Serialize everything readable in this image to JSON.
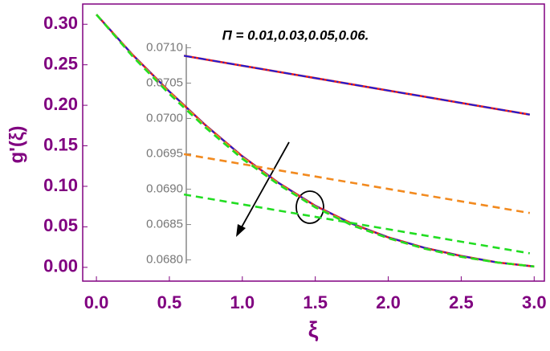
{
  "chart_data": [
    {
      "type": "line",
      "annotation": "Π = 0.01,0.03,0.05,0.06.",
      "xlabel": "ξ",
      "ylabel": "g'(ξ)",
      "x": [
        0,
        0.25,
        0.5,
        0.75,
        1.0,
        1.25,
        1.5,
        1.75,
        2.0,
        2.25,
        2.5,
        2.75,
        3.0
      ],
      "series": [
        {
          "color": "#e8211d",
          "values": [
            0.312,
            0.262,
            0.217,
            0.175,
            0.137,
            0.104,
            0.076,
            0.054,
            0.037,
            0.024,
            0.014,
            0.006,
            0.001
          ]
        },
        {
          "color": "#1d1dd6",
          "values": [
            0.312,
            0.262,
            0.217,
            0.175,
            0.137,
            0.104,
            0.076,
            0.054,
            0.037,
            0.024,
            0.014,
            0.006,
            0.001
          ]
        },
        {
          "color": "#f28a1f",
          "values": [
            0.312,
            0.261,
            0.216,
            0.174,
            0.136,
            0.103,
            0.075,
            0.053,
            0.036,
            0.023,
            0.013,
            0.006,
            0.001
          ]
        },
        {
          "color": "#22dd22",
          "values": [
            0.312,
            0.26,
            0.214,
            0.172,
            0.134,
            0.102,
            0.074,
            0.052,
            0.036,
            0.023,
            0.013,
            0.006,
            0.001
          ]
        }
      ],
      "xlim": [
        -0.094,
        3.07
      ],
      "ylim": [
        -0.017,
        0.325
      ],
      "xticks": [
        {
          "value": 0.0,
          "label": "0.0"
        },
        0.5,
        {
          "value": 1.0,
          "label": "1.0"
        },
        1.5,
        {
          "value": 2.0,
          "label": "2.0"
        },
        2.5,
        {
          "value": 3.0,
          "label": "3.0"
        }
      ],
      "yticks": [
        {
          "value": 0.0,
          "label": "0.00"
        },
        0.05,
        {
          "value": 0.1,
          "label": "0.10"
        },
        0.15,
        {
          "value": 0.2,
          "label": "0.20"
        },
        0.25,
        {
          "value": 0.3,
          "label": "0.30"
        }
      ]
    },
    {
      "type": "line",
      "x": [
        0.6,
        2.97
      ],
      "series": [
        {
          "color": "#e8211d",
          "values": [
            0.070886,
            0.070054
          ]
        },
        {
          "color": "#1d1dd6",
          "values": [
            0.070886,
            0.070054
          ]
        },
        {
          "color": "#f28a1f",
          "values": [
            0.069495,
            0.068663
          ]
        },
        {
          "color": "#22dd22",
          "values": [
            0.068925,
            0.068093
          ]
        }
      ],
      "xlim": [
        -0.094,
        3.07
      ],
      "ylim": [
        0.06795,
        0.07105
      ],
      "yticks": [
        {
          "value": 0.068,
          "label": "0.0680"
        },
        0.0685,
        {
          "value": 0.069,
          "label": "0.0690"
        },
        0.0695,
        {
          "value": 0.07,
          "label": "0.0700"
        },
        0.0705,
        {
          "value": 0.071,
          "label": "0.0710"
        }
      ]
    }
  ]
}
